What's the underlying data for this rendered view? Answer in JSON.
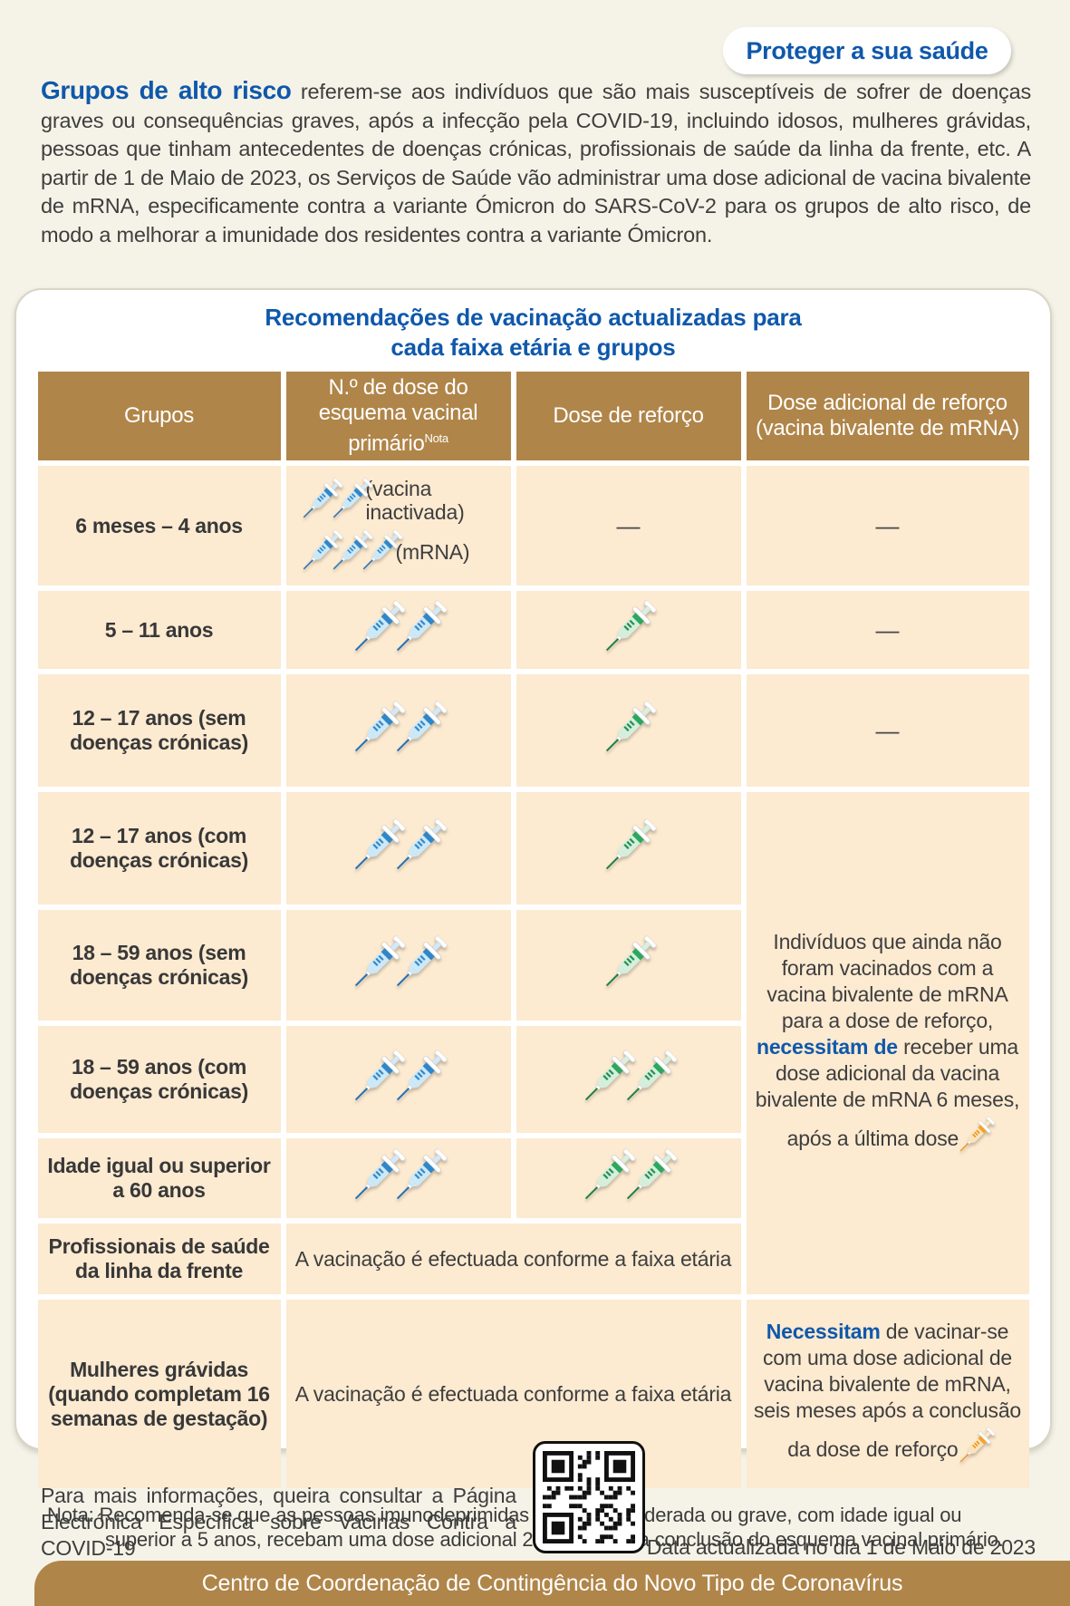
{
  "badge": {
    "label": "Proteger a sua saúde"
  },
  "intro": {
    "lead": "Grupos de alto risco",
    "text": " referem-se aos indivíduos que são mais susceptíveis de sofrer de doenças graves ou consequências graves, após a infecção pela COVID-19, incluindo idosos, mulheres grávidas, pessoas que tinham antecedentes de doenças crónicas, profissionais de saúde da linha da frente, etc. A partir de 1 de Maio de 2023, os Serviços de Saúde vão administrar uma dose adicional de vacina bivalente de mRNA, especificamente contra a variante Ómicron do SARS-CoV-2 para os grupos de alto risco, de modo a melhorar a imunidade dos residentes contra a variante Ómicron."
  },
  "card": {
    "title_line1": "Recomendações de vacinação actualizadas para",
    "title_line2": "cada faixa etária e grupos",
    "columns": {
      "groups": "Grupos",
      "primary": "N.º de dose do esquema vacinal primário",
      "primary_sup": "Nota",
      "booster": "Dose de reforço",
      "additional": "Dose adicional de reforço (vacina bivalente de mRNA)"
    },
    "rows": {
      "r1": {
        "group": "6 meses – 4 anos",
        "primary_inactivated": {
          "count": 2,
          "color": "blue"
        },
        "primary_inactivated_label": "(vacina inactivada)",
        "primary_mrna": {
          "count": 3,
          "color": "blue"
        },
        "primary_mrna_label": "(mRNA)",
        "booster": "—",
        "additional": "—"
      },
      "r2": {
        "group": "5 – 11 anos",
        "primary": {
          "count": 2,
          "color": "blue"
        },
        "booster": {
          "count": 1,
          "color": "green"
        },
        "additional": "—"
      },
      "r3": {
        "group": "12 – 17 anos (sem doenças crónicas)",
        "primary": {
          "count": 2,
          "color": "blue"
        },
        "booster": {
          "count": 1,
          "color": "green"
        },
        "additional": "—"
      },
      "r4": {
        "group": "12 – 17 anos (com doenças crónicas)",
        "primary": {
          "count": 2,
          "color": "blue"
        },
        "booster": {
          "count": 1,
          "color": "green"
        }
      },
      "r5": {
        "group": "18 – 59 anos (sem doenças crónicas)",
        "primary": {
          "count": 2,
          "color": "blue"
        },
        "booster": {
          "count": 1,
          "color": "green"
        }
      },
      "r6": {
        "group": "18 – 59 anos (com doenças crónicas)",
        "primary": {
          "count": 2,
          "color": "blue"
        },
        "booster": {
          "count": 2,
          "color": "green"
        }
      },
      "r7": {
        "group": "Idade igual ou superior a 60 anos",
        "primary": {
          "count": 2,
          "color": "blue"
        },
        "booster": {
          "count": 2,
          "color": "green"
        }
      },
      "r8": {
        "group": "Profissionais de saúde da linha da frente",
        "note": "A vacinação é efectuada conforme a faixa etária"
      },
      "r9": {
        "group": "Mulheres grávidas (quando completam 16 semanas de gestação)",
        "note": "A vacinação é efectuada conforme a faixa etária",
        "additional_bold": "Necessitam",
        "additional_text": " de vacinar-se com uma dose adicional de vacina bivalente de mRNA, seis meses após a conclusão da dose de reforço ",
        "additional_icon": {
          "count": 1,
          "color": "orange"
        }
      }
    },
    "merged_additional": {
      "t1": "Indivíduos que ainda não foram vacinados com a vacina bivalente de mRNA para a dose de reforço, ",
      "bold": "necessitam de",
      "t2": " receber uma dose adicional da vacina bivalente de mRNA 6 meses, após a última dose ",
      "icon": {
        "count": 1,
        "color": "orange"
      }
    },
    "nota_label": "Nota:",
    "nota_text": " Recomenda-se que as pessoas imunodeprimidas de forma moderada ou grave, com idade igual ou superior a 5 anos, recebam uma dose adicional 28 dias após a conclusão do esquema vacinal primário."
  },
  "footer": {
    "info": "Para mais informações, queira consultar a Página Electrónica Específica sobre Vacinas Contra a COVID-19",
    "updated": "Data actualizada no dia 1 de Maio de 2023",
    "banner": "Centro de Coordenação de Contingência do Novo Tipo de Coronavírus"
  },
  "colors": {
    "brand_brown": "#b08549",
    "cell_peach": "#fcead1",
    "accent_blue": "#0f58ab",
    "syringe_blue": "#2f86c8",
    "syringe_green": "#2aa85e",
    "syringe_orange": "#f6a224"
  }
}
